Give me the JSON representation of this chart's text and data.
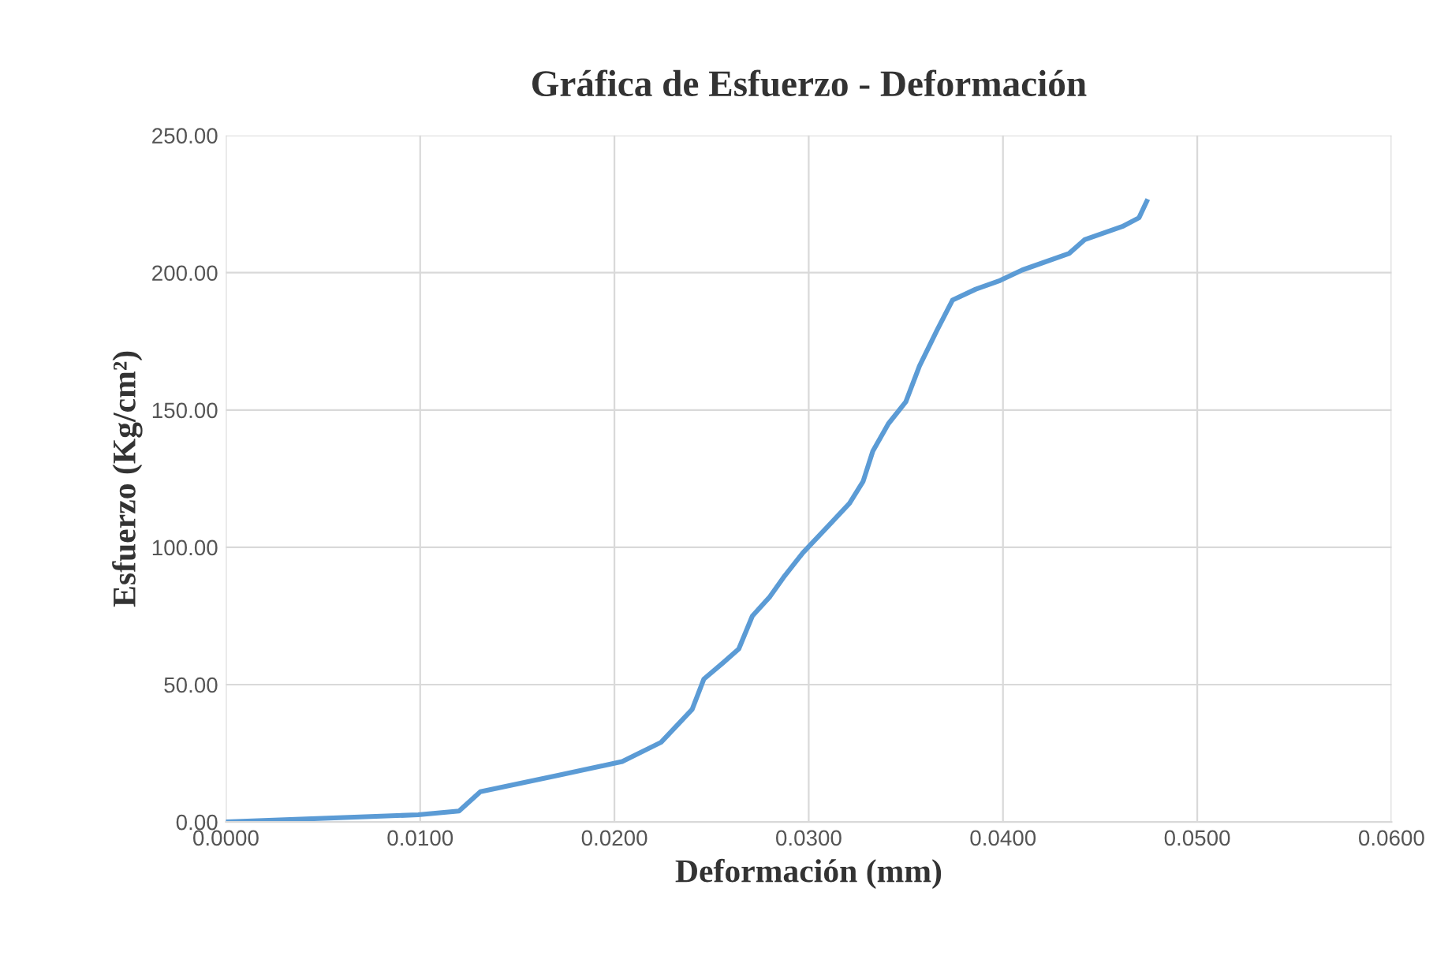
{
  "chart_data": {
    "type": "line",
    "title": "Gráfica de Esfuerzo - Deformación",
    "xlabel": "Deformación (mm)",
    "ylabel": "Esfuerzo (Kg/cm²)",
    "series": [
      {
        "color": "#5b9bd5",
        "x": [
          0,
          0.0099,
          0.012,
          0.0131,
          0.0171,
          0.0204,
          0.0224,
          0.024,
          0.0246,
          0.0256,
          0.0264,
          0.0271,
          0.028,
          0.0287,
          0.0297,
          0.0309,
          0.0321,
          0.0328,
          0.0333,
          0.0341,
          0.035,
          0.0357,
          0.0366,
          0.0374,
          0.0386,
          0.0398,
          0.041,
          0.0434,
          0.0442,
          0.0462,
          0.047,
          0.0474
        ],
        "values": [
          0,
          2.6,
          4,
          11,
          17,
          22,
          29,
          41,
          52,
          58,
          63,
          75,
          82,
          89,
          98,
          107,
          116,
          124,
          135,
          145,
          153,
          166,
          179,
          190,
          194,
          197,
          201,
          207,
          212,
          217,
          220,
          226
        ]
      }
    ],
    "xlim": [
      0,
      0.06
    ],
    "xticks": [
      {
        "value": 0,
        "label": "0.0000"
      },
      {
        "value": 0.01,
        "label": "0.0100"
      },
      {
        "value": 0.02,
        "label": "0.0200"
      },
      {
        "value": 0.03,
        "label": "0.0300"
      },
      {
        "value": 0.04,
        "label": "0.0400"
      },
      {
        "value": 0.05,
        "label": "0.0500"
      },
      {
        "value": 0.06,
        "label": "0.0600"
      }
    ],
    "ylim": [
      0,
      250
    ],
    "yticks": [
      {
        "value": 0,
        "label": "0.00"
      },
      {
        "value": 50,
        "label": "50.00"
      },
      {
        "value": 100,
        "label": "100.00"
      },
      {
        "value": 150,
        "label": "150.00"
      },
      {
        "value": 200,
        "label": "200.00"
      },
      {
        "value": 250,
        "label": "250.00"
      }
    ],
    "grid": true
  }
}
